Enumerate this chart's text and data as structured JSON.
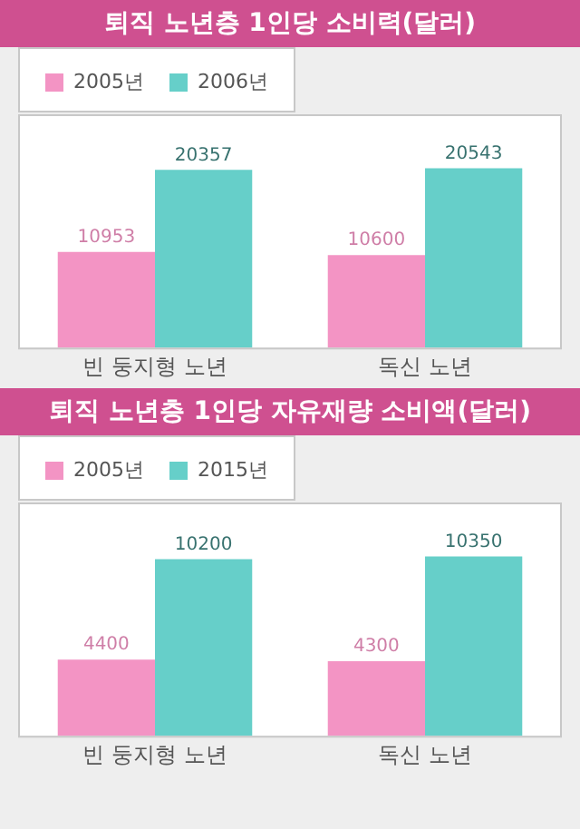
{
  "chart_data": [
    {
      "type": "bar",
      "title": "퇴직 노년층 1인당 소비력(달러)",
      "categories": [
        "빈 둥지형 노년",
        "독신 노년"
      ],
      "series": [
        {
          "name": "2005년",
          "color": "#f394c4",
          "values": [
            10953,
            10600
          ]
        },
        {
          "name": "2006년",
          "color": "#66cfc9",
          "values": [
            20357,
            20543
          ]
        }
      ],
      "data_labels": true,
      "legend": "top left"
    },
    {
      "type": "bar",
      "title": "퇴직 노년층 1인당 자유재량 소비액(달러)",
      "categories": [
        "빈 둥지형 노년",
        "독신 노년"
      ],
      "series": [
        {
          "name": "2005년",
          "color": "#f394c4",
          "values": [
            4400,
            4300
          ]
        },
        {
          "name": "2015년",
          "color": "#66cfc9",
          "values": [
            10200,
            10350
          ]
        }
      ],
      "data_labels": true,
      "legend": "top left"
    }
  ]
}
